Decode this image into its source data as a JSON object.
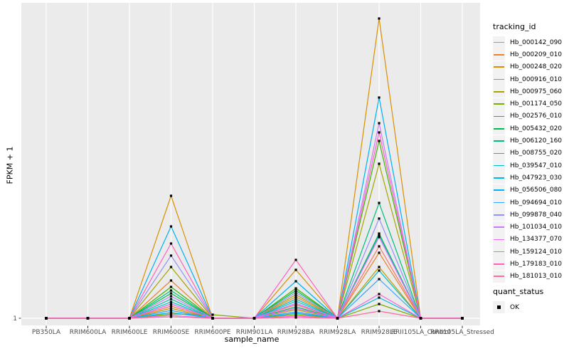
{
  "figure": {
    "background": "#FFFFFF",
    "panel_bg": "#EBEBEB",
    "grid_color": "#FFFFFF",
    "axis_text_color": "#4D4D4D",
    "tick_color": "#333333",
    "text_color": "#000000",
    "legend_key_bg": "#F2F2F2",
    "point_color": "#000000"
  },
  "chart_data": {
    "type": "line",
    "title": "",
    "xlabel": "sample_name",
    "ylabel": "FPKM + 1",
    "ytick_labels": [
      "1"
    ],
    "ylim": [
      1,
      445
    ],
    "grid": true,
    "legend_position": "right",
    "legend_title": "tracking_id",
    "point_marker": "black-square",
    "categories": [
      "PB350LA",
      "RRIM600LA",
      "RRIM600LE",
      "RRIM600SE",
      "RRIM600PE",
      "RRIM901LA",
      "RRIM928BA",
      "RRIM928LA",
      "RRIM928LE",
      "RRII105LA_Control",
      "RRII105LA_Stressed"
    ],
    "series": [
      {
        "name": "Hb_000142_090",
        "color": "#F8766D",
        "values": [
          1,
          1,
          1,
          18,
          1,
          1,
          20,
          1,
          102,
          1,
          1
        ]
      },
      {
        "name": "Hb_000209_010",
        "color": "#EA8331",
        "values": [
          1,
          1,
          1,
          54,
          1,
          1,
          31,
          1,
          93,
          1,
          1
        ]
      },
      {
        "name": "Hb_000248_020",
        "color": "#D89000",
        "values": [
          1,
          1,
          1,
          173,
          1,
          1,
          69,
          1,
          422,
          1,
          1
        ]
      },
      {
        "name": "Hb_000916_010",
        "color": "#C09B00",
        "values": [
          1,
          1,
          1,
          15,
          1,
          1,
          13,
          1,
          73,
          1,
          1
        ]
      },
      {
        "name": "Hb_000975_060",
        "color": "#A3A500",
        "values": [
          1,
          1,
          1,
          73,
          1,
          1,
          34,
          1,
          218,
          1,
          1
        ]
      },
      {
        "name": "Hb_001174_050",
        "color": "#7CAE00",
        "values": [
          1,
          1,
          1,
          7,
          6,
          1,
          6,
          1,
          21,
          1,
          1
        ]
      },
      {
        "name": "Hb_002576_010",
        "color": "#39B600",
        "values": [
          1,
          1,
          1,
          45,
          1,
          1,
          43,
          1,
          250,
          1,
          1
        ]
      },
      {
        "name": "Hb_005432_020",
        "color": "#00BB4E",
        "values": [
          1,
          1,
          1,
          36,
          1,
          1,
          40,
          1,
          120,
          1,
          1
        ]
      },
      {
        "name": "Hb_006120_160",
        "color": "#00BF7D",
        "values": [
          1,
          1,
          1,
          40,
          1,
          1,
          17,
          1,
          163,
          1,
          1
        ]
      },
      {
        "name": "Hb_008755_020",
        "color": "#00C1A3",
        "values": [
          1,
          1,
          1,
          28,
          1,
          1,
          28,
          1,
          118,
          1,
          1
        ]
      },
      {
        "name": "Hb_039547_010",
        "color": "#00BFC4",
        "values": [
          1,
          1,
          1,
          24,
          1,
          1,
          25,
          1,
          68,
          1,
          1
        ]
      },
      {
        "name": "Hb_047923_030",
        "color": "#00BAE0",
        "values": [
          1,
          1,
          1,
          9,
          1,
          1,
          8,
          1,
          30,
          1,
          1
        ]
      },
      {
        "name": "Hb_056506_080",
        "color": "#00B0F6",
        "values": [
          1,
          1,
          1,
          130,
          1,
          1,
          53,
          1,
          311,
          1,
          1
        ]
      },
      {
        "name": "Hb_094694_010",
        "color": "#35A2FF",
        "values": [
          1,
          1,
          1,
          12,
          1,
          1,
          10,
          1,
          56,
          1,
          1
        ]
      },
      {
        "name": "Hb_099878_040",
        "color": "#9590FF",
        "values": [
          1,
          1,
          1,
          89,
          1,
          1,
          37,
          1,
          141,
          1,
          1
        ]
      },
      {
        "name": "Hb_101034_010",
        "color": "#C77CFF",
        "values": [
          1,
          1,
          1,
          32,
          1,
          1,
          22,
          1,
          275,
          1,
          1
        ]
      },
      {
        "name": "Hb_134377_070",
        "color": "#E76BF3",
        "values": [
          1,
          1,
          1,
          21,
          1,
          1,
          15,
          1,
          115,
          1,
          1
        ]
      },
      {
        "name": "Hb_159124_010",
        "color": "#FA62DB",
        "values": [
          1,
          1,
          1,
          5,
          1,
          1,
          4,
          1,
          35,
          1,
          1
        ]
      },
      {
        "name": "Hb_179183_010",
        "color": "#FF62BC",
        "values": [
          1,
          1,
          1,
          106,
          1,
          1,
          83,
          1,
          262,
          1,
          1
        ]
      },
      {
        "name": "Hb_181013_010",
        "color": "#FF6A98",
        "values": [
          1,
          1,
          1,
          3,
          1,
          1,
          2,
          1,
          11,
          1,
          1
        ]
      }
    ],
    "legend2_title": "quant_status",
    "legend2_items": [
      {
        "label": "OK",
        "marker": "black-square"
      }
    ]
  }
}
